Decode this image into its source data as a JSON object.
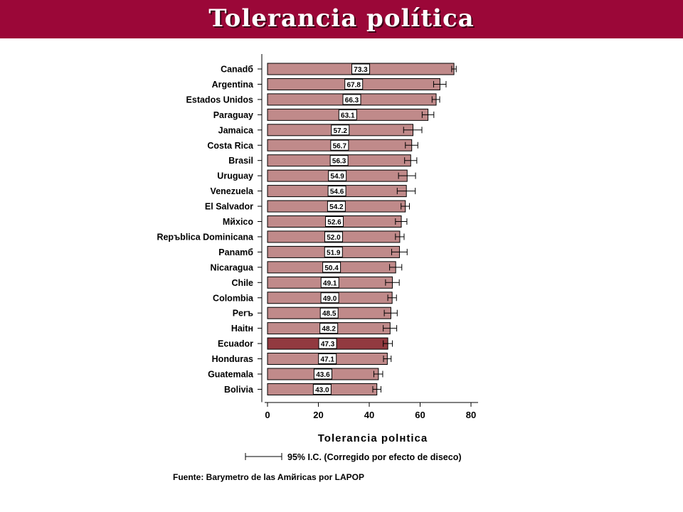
{
  "title": "Tolerancia política",
  "colors": {
    "banner": "#9b0738",
    "bar": "#c08a8a",
    "highlight": "#923a40",
    "text": "#000000"
  },
  "chart_data": {
    "type": "bar",
    "orientation": "horizontal",
    "categories": [
      "Canadб",
      "Argentina",
      "Estados Unidos",
      "Paraguay",
      "Jamaica",
      "Costa Rica",
      "Brasil",
      "Uruguay",
      "Venezuela",
      "El Salvador",
      "Mйxico",
      "Repъblica Dominicana",
      "Panamб",
      "Nicaragua",
      "Chile",
      "Colombia",
      "Perъ",
      "Haitн",
      "Ecuador",
      "Honduras",
      "Guatemala",
      "Bolivia"
    ],
    "values": [
      73.3,
      67.8,
      66.3,
      63.1,
      57.2,
      56.7,
      56.3,
      54.9,
      54.6,
      54.2,
      52.6,
      52.0,
      51.9,
      50.4,
      49.1,
      49.0,
      48.5,
      48.2,
      47.3,
      47.1,
      43.6,
      43.0
    ],
    "value_labels": [
      "73.3",
      "67.8",
      "66.3",
      "63.1",
      "57.2",
      "56.7",
      "56.3",
      "54.9",
      "54.6",
      "54.2",
      "52.6",
      "52.0",
      "51.9",
      "50.4",
      "49.1",
      "49.0",
      "48.5",
      "48.2",
      "47.3",
      "47.1",
      "43.6",
      "43.0"
    ],
    "error_low": [
      72.4,
      65.3,
      64.7,
      60.8,
      53.5,
      54.2,
      53.9,
      51.5,
      51.0,
      52.5,
      50.3,
      50.3,
      48.8,
      48.0,
      46.4,
      47.3,
      45.9,
      45.5,
      45.5,
      45.6,
      41.8,
      41.4
    ],
    "error_high": [
      74.2,
      70.2,
      67.7,
      65.4,
      60.7,
      59.1,
      58.7,
      58.2,
      58.1,
      55.8,
      54.8,
      53.7,
      54.9,
      52.8,
      51.8,
      50.7,
      51.0,
      50.8,
      49.1,
      48.6,
      45.3,
      44.6
    ],
    "highlight": "Ecuador",
    "xlabel": "Tolerancia polнtica",
    "xlim": [
      0,
      80
    ],
    "xticks": [
      "0",
      "20",
      "40",
      "60",
      "80"
    ],
    "legend_text": "95% I.C. (Corregido por efecto de diseсo)",
    "source": "Fuente: Barуmetro de las Amйricas por LAPOP"
  }
}
